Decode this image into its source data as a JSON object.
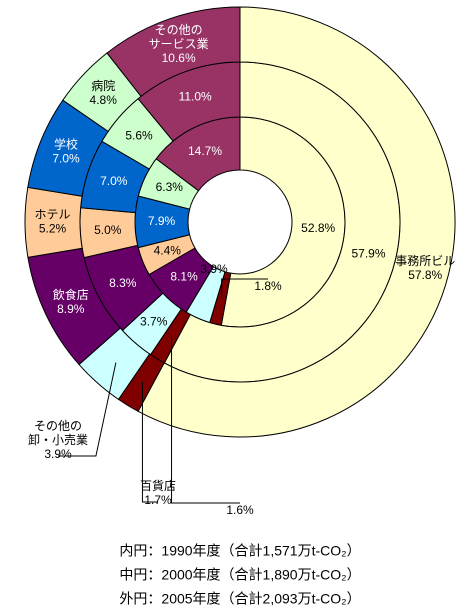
{
  "chart_data": {
    "type": "multi-donut",
    "categories": [
      "事務所ビル",
      "百貨店",
      "その他の\n卸・小売業",
      "飲食店",
      "ホテル",
      "学校",
      "病院",
      "その他の\nサービス業"
    ],
    "colors": [
      "#ffffcc",
      "#800000",
      "#ccffff",
      "#660066",
      "#ffcc99",
      "#0066cc",
      "#ccffcc",
      "#993366"
    ],
    "series": [
      {
        "name": "内円：1990年度（合計1,571万t-CO₂）",
        "values": [
          52.8,
          1.8,
          3.9,
          8.1,
          4.4,
          7.9,
          6.3,
          14.7
        ],
        "value_labels": [
          "52.8%",
          "1.8%",
          "3.9%",
          "8.1%",
          "4.4%",
          "7.9%",
          "6.3%",
          "14.7%"
        ]
      },
      {
        "name": "中円：2000年度（合計1,890万t-CO₂）",
        "values": [
          57.9,
          1.6,
          3.7,
          8.3,
          5.0,
          7.0,
          5.6,
          11.0
        ],
        "value_labels": [
          "57.9%",
          "1.6%",
          "3.7%",
          "8.3%",
          "5.0%",
          "7.0%",
          "5.6%",
          "11.0%"
        ]
      },
      {
        "name": "外円：2005年度（合計2,093万t-CO₂）",
        "values": [
          57.8,
          1.7,
          3.9,
          8.9,
          5.2,
          7.0,
          4.8,
          10.6
        ],
        "value_labels": [
          "57.8%",
          "1.7%",
          "3.9%",
          "8.9%",
          "5.2%",
          "7.0%",
          "4.8%",
          "10.6%"
        ]
      }
    ]
  }
}
